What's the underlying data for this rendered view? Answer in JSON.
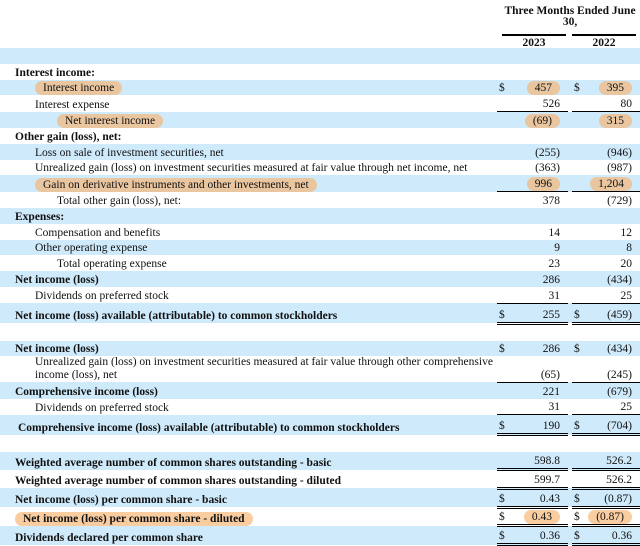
{
  "header": {
    "period": "Three Months Ended June 30,",
    "years": [
      "2023",
      "2022"
    ]
  },
  "colors": {
    "stripe": "#cfeafb",
    "highlight": "#f7b26e"
  },
  "rows": [
    {
      "label": "",
      "v1": "",
      "v2": ""
    },
    {
      "label": "Interest income:",
      "bold": true
    },
    {
      "label": "Interest income",
      "d1": "$",
      "v1": "457",
      "d2": "$",
      "v2": "395",
      "hl": true
    },
    {
      "label": "Interest expense",
      "v1": "526",
      "v2": "80"
    },
    {
      "label": "Net interest income",
      "v1": "(69)",
      "v2": "315",
      "hl": true
    },
    {
      "label": "Other gain (loss), net:",
      "bold": true
    },
    {
      "label": "Loss on sale of investment securities, net",
      "v1": "(255)",
      "v2": "(946)"
    },
    {
      "label": "Unrealized gain (loss) on investment securities measured at fair value through net income, net",
      "v1": "(363)",
      "v2": "(987)"
    },
    {
      "label": "Gain on derivative instruments and other investments, net",
      "v1": "996",
      "v2": "1,204",
      "hl": true
    },
    {
      "label": "Total other gain (loss), net:",
      "v1": "378",
      "v2": "(729)"
    },
    {
      "label": "Expenses:",
      "bold": true
    },
    {
      "label": "Compensation and benefits",
      "v1": "14",
      "v2": "12"
    },
    {
      "label": "Other operating expense",
      "v1": "9",
      "v2": "8"
    },
    {
      "label": "Total operating expense",
      "v1": "23",
      "v2": "20"
    },
    {
      "label": "Net income (loss)",
      "bold": true,
      "v1": "286",
      "v2": "(434)"
    },
    {
      "label": "Dividends on preferred stock",
      "v1": "31",
      "v2": "25"
    },
    {
      "label": "Net income (loss) available (attributable) to common stockholders",
      "bold": true,
      "d1": "$",
      "v1": "255",
      "d2": "$",
      "v2": "(459)"
    },
    {
      "label": ""
    },
    {
      "label": "Net income (loss)",
      "bold": true,
      "d1": "$",
      "v1": "286",
      "d2": "$",
      "v2": "(434)"
    },
    {
      "label": "Unrealized gain (loss) on investment securities measured at fair value through other comprehensive income (loss), net",
      "v1": "(65)",
      "v2": "(245)"
    },
    {
      "label": "Comprehensive income (loss)",
      "bold": true,
      "v1": "221",
      "v2": "(679)"
    },
    {
      "label": "Dividends on preferred stock",
      "v1": "31",
      "v2": "25"
    },
    {
      "label": "Comprehensive income (loss) available (attributable) to common stockholders",
      "bold": true,
      "d1": "$",
      "v1": "190",
      "d2": "$",
      "v2": "(704)"
    },
    {
      "label": ""
    },
    {
      "label": "Weighted average number of common shares outstanding - basic",
      "bold": true,
      "v1": "598.8",
      "v2": "526.2"
    },
    {
      "label": "Weighted average number of common shares outstanding - diluted",
      "bold": true,
      "v1": "599.7",
      "v2": "526.2"
    },
    {
      "label": "Net income (loss) per common share - basic",
      "bold": true,
      "d1": "$",
      "v1": "0.43",
      "d2": "$",
      "v2": "(0.87)"
    },
    {
      "label": "Net income (loss) per common share - diluted",
      "bold": true,
      "d1": "$",
      "v1": "0.43",
      "d2": "$",
      "v2": "(0.87)",
      "hl": true
    },
    {
      "label": "Dividends declared per common share",
      "bold": true,
      "d1": "$",
      "v1": "0.36",
      "d2": "$",
      "v2": "0.36"
    }
  ]
}
